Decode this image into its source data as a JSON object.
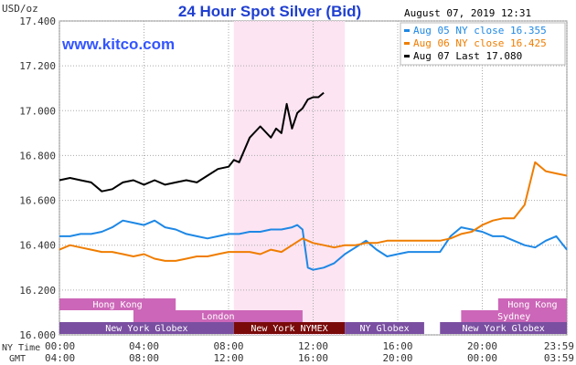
{
  "chart_data": {
    "type": "line",
    "title": "24 Hour Spot Silver (Bid)",
    "unit_label": "USD/oz",
    "timestamp": "August 07, 2019 12:31",
    "watermark": "www.kitco.com",
    "ylim": [
      16.0,
      17.4
    ],
    "y_ticks": [
      "16.000",
      "16.200",
      "16.400",
      "16.600",
      "16.800",
      "17.000",
      "17.200",
      "17.400"
    ],
    "x_range_hours": [
      0,
      24
    ],
    "ny_time_label": "NY Time",
    "gmt_label": "GMT",
    "ny_time_ticks": [
      "00:00",
      "04:00",
      "08:00",
      "12:00",
      "16:00",
      "20:00",
      "23:59"
    ],
    "gmt_ticks": [
      "04:00",
      "08:00",
      "12:00",
      "16:00",
      "20:00",
      "00:00",
      "03:59"
    ],
    "highlight_hours": [
      8.25,
      13.5
    ],
    "sessions": [
      {
        "name": "Hong Kong",
        "row": 0,
        "start": 0.0,
        "end": 5.5,
        "color": "#cc66b8",
        "text_color": "#ffffff"
      },
      {
        "name": "Hong Kong",
        "row": 0,
        "start": 20.75,
        "end": 24.0,
        "color": "#cc66b8",
        "text_color": "#ffffff"
      },
      {
        "name": "London",
        "row": 1,
        "start": 3.5,
        "end": 11.5,
        "color": "#cc66b8",
        "text_color": "#ffffff"
      },
      {
        "name": "Sydney",
        "row": 1,
        "start": 19.0,
        "end": 24.0,
        "color": "#cc66b8",
        "text_color": "#ffffff"
      },
      {
        "name": "New York Globex",
        "row": 2,
        "start": 0.0,
        "end": 8.25,
        "color": "#7a4fa1",
        "text_color": "#ffffff"
      },
      {
        "name": "New York NYMEX",
        "row": 2,
        "start": 8.25,
        "end": 13.5,
        "color": "#7a0a0a",
        "text_color": "#ffffff"
      },
      {
        "name": "NY Globex",
        "row": 2,
        "start": 13.5,
        "end": 17.25,
        "color": "#7a4fa1",
        "text_color": "#ffffff"
      },
      {
        "name": "New York Globex",
        "row": 2,
        "start": 18.0,
        "end": 24.0,
        "color": "#7a4fa1",
        "text_color": "#ffffff"
      }
    ],
    "series": [
      {
        "name": "Aug 05 NY close 16.355",
        "color": "#1e88e5",
        "x": [
          0,
          0.5,
          1,
          1.5,
          2,
          2.5,
          3,
          3.5,
          4,
          4.5,
          5,
          5.5,
          6,
          6.5,
          7,
          7.5,
          8,
          8.5,
          9,
          9.5,
          10,
          10.5,
          11,
          11.25,
          11.5,
          11.75,
          12,
          12.5,
          13,
          13.5,
          14,
          14.5,
          15,
          15.5,
          16,
          16.5,
          17,
          17.5,
          18,
          18.5,
          19,
          19.5,
          20,
          20.5,
          21,
          21.5,
          22,
          22.5,
          23,
          23.5,
          24
        ],
        "y": [
          16.44,
          16.44,
          16.45,
          16.45,
          16.46,
          16.48,
          16.51,
          16.5,
          16.49,
          16.51,
          16.48,
          16.47,
          16.45,
          16.44,
          16.43,
          16.44,
          16.45,
          16.45,
          16.46,
          16.46,
          16.47,
          16.47,
          16.48,
          16.49,
          16.47,
          16.3,
          16.29,
          16.3,
          16.32,
          16.36,
          16.39,
          16.42,
          16.38,
          16.35,
          16.36,
          16.37,
          16.37,
          16.37,
          16.37,
          16.44,
          16.48,
          16.47,
          16.46,
          16.44,
          16.44,
          16.42,
          16.4,
          16.39,
          16.42,
          16.44,
          16.38
        ]
      },
      {
        "name": "Aug 06 NY close 16.425",
        "color": "#ef7d00",
        "x": [
          0,
          0.5,
          1,
          1.5,
          2,
          2.5,
          3,
          3.5,
          4,
          4.5,
          5,
          5.5,
          6,
          6.5,
          7,
          7.5,
          8,
          8.5,
          9,
          9.5,
          10,
          10.5,
          11,
          11.5,
          12,
          12.5,
          13,
          13.5,
          14,
          14.5,
          15,
          15.5,
          16,
          16.5,
          17,
          17.5,
          18,
          18.5,
          19,
          19.5,
          20,
          20.5,
          21,
          21.5,
          22,
          22.5,
          23,
          23.5,
          24
        ],
        "y": [
          16.38,
          16.4,
          16.39,
          16.38,
          16.37,
          16.37,
          16.36,
          16.35,
          16.36,
          16.34,
          16.33,
          16.33,
          16.34,
          16.35,
          16.35,
          16.36,
          16.37,
          16.37,
          16.37,
          16.36,
          16.38,
          16.37,
          16.4,
          16.43,
          16.41,
          16.4,
          16.39,
          16.4,
          16.4,
          16.41,
          16.41,
          16.42,
          16.42,
          16.42,
          16.42,
          16.42,
          16.42,
          16.43,
          16.45,
          16.46,
          16.49,
          16.51,
          16.52,
          16.52,
          16.58,
          16.77,
          16.73,
          16.72,
          16.71
        ]
      },
      {
        "name": "Aug 07 Last 17.080",
        "color": "#000000",
        "x": [
          0,
          0.5,
          1,
          1.5,
          2,
          2.5,
          3,
          3.5,
          4,
          4.5,
          5,
          5.5,
          6,
          6.5,
          7,
          7.5,
          8,
          8.25,
          8.5,
          9,
          9.5,
          10,
          10.25,
          10.5,
          10.75,
          11,
          11.25,
          11.5,
          11.75,
          12,
          12.25,
          12.5
        ],
        "y": [
          16.69,
          16.7,
          16.69,
          16.68,
          16.64,
          16.65,
          16.68,
          16.69,
          16.67,
          16.69,
          16.67,
          16.68,
          16.69,
          16.68,
          16.71,
          16.74,
          16.75,
          16.78,
          16.77,
          16.88,
          16.93,
          16.88,
          16.92,
          16.9,
          17.03,
          16.92,
          16.99,
          17.01,
          17.05,
          17.06,
          17.06,
          17.08
        ]
      }
    ]
  }
}
